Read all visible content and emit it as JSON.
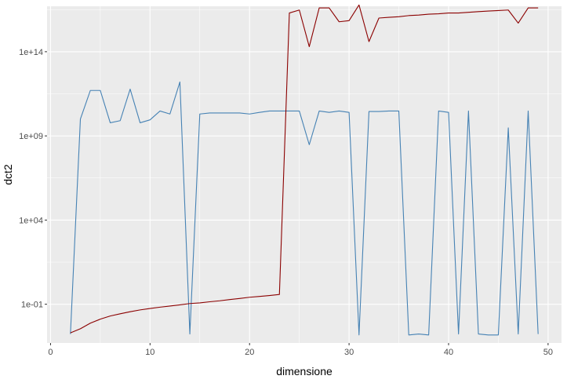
{
  "chart_data": {
    "type": "line",
    "xlabel": "dimensione",
    "ylabel": "dct2",
    "xlim": [
      -0.35,
      51.35
    ],
    "x_ticks": [
      0,
      10,
      20,
      30,
      40,
      50
    ],
    "x_tick_labels": [
      "0",
      "10",
      "20",
      "30",
      "40",
      "50"
    ],
    "y_scale": "log10",
    "ylim": [
      0.0005,
      5e+16
    ],
    "y_ticks": [
      0.1,
      10000,
      1000000000,
      100000000000000
    ],
    "y_tick_labels": [
      "1e-01",
      "1e+04",
      "1e+09",
      "1e+14"
    ],
    "grid": true,
    "background": "#ebebeb",
    "legend": "none",
    "series": [
      {
        "color": "#4682b4",
        "x": [
          2,
          3,
          4,
          5,
          6,
          7,
          8,
          9,
          10,
          11,
          12,
          13,
          14,
          15,
          16,
          17,
          18,
          19,
          20,
          21,
          22,
          23,
          24,
          25,
          26,
          27,
          28,
          29,
          30,
          31,
          32,
          33,
          34,
          35,
          36,
          37,
          38,
          39,
          40,
          41,
          42,
          43,
          44,
          45,
          46,
          47,
          48,
          49
        ],
        "y": [
          0.0017,
          10000000000.0,
          500000000000.0,
          500000000000.0,
          6000000000.0,
          8000000000.0,
          600000000000.0,
          6000000000.0,
          9000000000.0,
          30000000000.0,
          20000000000.0,
          1600000000000.0,
          0.0017,
          20000000000.0,
          23000000000.0,
          23000000000.0,
          23000000000.0,
          23000000000.0,
          20000000000.0,
          25000000000.0,
          30000000000.0,
          30000000000.0,
          30000000000.0,
          30000000000.0,
          300000000.0,
          30000000000.0,
          25000000000.0,
          30000000000.0,
          25000000000.0,
          0.0015,
          28000000000.0,
          28000000000.0,
          30000000000.0,
          30000000000.0,
          0.0015,
          0.0017,
          0.0015,
          30000000000.0,
          25000000000.0,
          0.0017,
          30000000000.0,
          0.0017,
          0.0015,
          0.0015,
          3000000000.0,
          0.0017,
          30000000000.0,
          0.0017
        ]
      },
      {
        "color": "#8b0000",
        "x": [
          2,
          3,
          4,
          5,
          6,
          7,
          8,
          9,
          10,
          11,
          12,
          13,
          14,
          15,
          16,
          17,
          18,
          19,
          20,
          21,
          22,
          23,
          24,
          25,
          26,
          27,
          28,
          29,
          30,
          31,
          32,
          33,
          34,
          35,
          36,
          37,
          38,
          39,
          40,
          41,
          42,
          43,
          44,
          45,
          46,
          47,
          48,
          49
        ],
        "y": [
          0.002,
          0.0035,
          0.0075,
          0.013,
          0.02,
          0.027,
          0.036,
          0.046,
          0.056,
          0.067,
          0.078,
          0.092,
          0.11,
          0.12,
          0.14,
          0.16,
          0.19,
          0.22,
          0.26,
          0.29,
          0.33,
          0.38,
          2e+16,
          3e+16,
          200000000000000.0,
          4e+16,
          4e+16,
          6000000000000000.0,
          7000000000000000.0,
          6e+16,
          400000000000000.0,
          1e+16,
          1.1e+16,
          1.2e+16,
          1.4e+16,
          1.5e+16,
          1.7e+16,
          1.8e+16,
          2e+16,
          2e+16,
          2.2e+16,
          2.4e+16,
          2.6e+16,
          2.8e+16,
          3e+16,
          5000000000000000.0,
          4e+16,
          4e+16
        ]
      }
    ]
  }
}
